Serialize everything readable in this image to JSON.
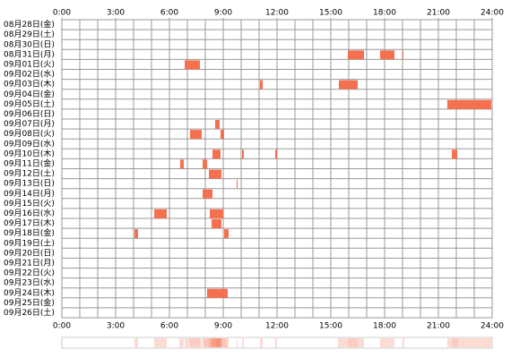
{
  "chart_data": {
    "type": "timeline",
    "categories": [
      "08月28日(金)",
      "08月29日(土)",
      "08月30日(日)",
      "08月31日(月)",
      "09月01日(火)",
      "09月02日(水)",
      "09月03日(木)",
      "09月04日(金)",
      "09月05日(土)",
      "09月06日(日)",
      "09月07日(月)",
      "09月08日(火)",
      "09月09日(水)",
      "09月10日(木)",
      "09月11日(金)",
      "09月12日(土)",
      "09月13日(日)",
      "09月14日(月)",
      "09月15日(火)",
      "09月16日(水)",
      "09月17日(木)",
      "09月18日(金)",
      "09月19日(土)",
      "09月20日(日)",
      "09月21日(月)",
      "09月22日(火)",
      "09月23日(水)",
      "09月24日(木)",
      "09月25日(金)",
      "09月26日(土)"
    ],
    "values": [
      [],
      [],
      [],
      [
        [
          15.95,
          16.85
        ],
        [
          17.75,
          18.55
        ],
        [
          19.0,
          19.05
        ]
      ],
      [
        [
          6.85,
          7.7
        ]
      ],
      [],
      [
        [
          11.05,
          11.2
        ],
        [
          15.45,
          16.5
        ]
      ],
      [],
      [
        [
          21.5,
          23.95
        ]
      ],
      [],
      [
        [
          8.55,
          8.8
        ]
      ],
      [
        [
          7.15,
          7.8
        ],
        [
          8.85,
          9.05
        ]
      ],
      [],
      [
        [
          8.4,
          8.85
        ],
        [
          10.05,
          10.15
        ],
        [
          11.9,
          12.0
        ],
        [
          21.75,
          22.05
        ]
      ],
      [
        [
          6.6,
          6.8
        ],
        [
          7.85,
          8.1
        ]
      ],
      [
        [
          8.2,
          8.9
        ]
      ],
      [
        [
          9.75,
          9.8
        ]
      ],
      [
        [
          7.85,
          8.4
        ]
      ],
      [],
      [
        [
          5.15,
          5.85
        ],
        [
          8.25,
          9.0
        ]
      ],
      [
        [
          8.35,
          8.9
        ]
      ],
      [
        [
          4.05,
          4.25
        ],
        [
          9.05,
          9.3
        ]
      ],
      [],
      [],
      [],
      [],
      [],
      [
        [
          8.1,
          9.25
        ]
      ],
      [],
      []
    ],
    "color": "#f4704f",
    "xlim": [
      0,
      24
    ],
    "xticks": [
      {
        "value": 0,
        "label": "0:00"
      },
      {
        "value": 3,
        "label": "3:00"
      },
      {
        "value": 6,
        "label": "6:00"
      },
      {
        "value": 9,
        "label": "9:00"
      },
      {
        "value": 12,
        "label": "12:00"
      },
      {
        "value": 15,
        "label": "15:00"
      },
      {
        "value": 18,
        "label": "18:00"
      },
      {
        "value": 21,
        "label": "21:00"
      },
      {
        "value": 24,
        "label": "24:00"
      }
    ],
    "grid": true
  }
}
